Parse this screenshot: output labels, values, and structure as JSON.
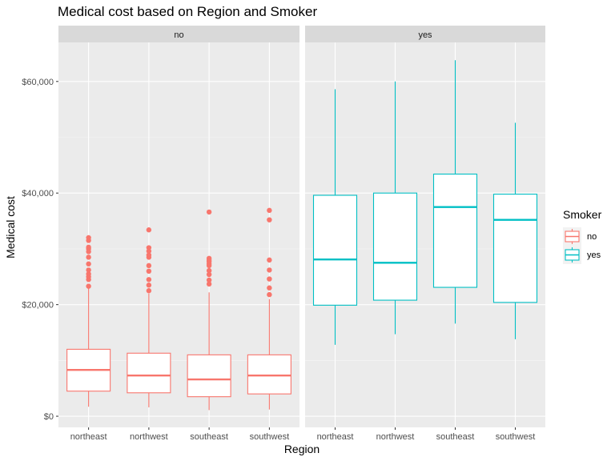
{
  "chart_data": {
    "type": "box",
    "title": "Medical cost based on Region and Smoker",
    "xlabel": "Region",
    "ylabel": "Medical cost",
    "categories": [
      "northeast",
      "northwest",
      "southeast",
      "southwest"
    ],
    "ylim": [
      -2000,
      67000
    ],
    "yticks": [
      0,
      20000,
      40000,
      60000
    ],
    "ytick_labels": [
      "$0",
      "$20,000",
      "$40,000",
      "$60,000"
    ],
    "grid": true,
    "legend": {
      "title": "Smoker",
      "position": "right",
      "items": [
        {
          "label": "no",
          "color": "#F8766D"
        },
        {
          "label": "yes",
          "color": "#00BFC4"
        }
      ]
    },
    "facets": [
      {
        "label": "no",
        "color": "#F8766D",
        "boxes": [
          {
            "category": "northeast",
            "lower_whisker": 1700,
            "q1": 4500,
            "median": 8300,
            "q3": 12000,
            "upper_whisker": 23000,
            "outliers": [
              23300,
              24500,
              25000,
              25500,
              26200,
              27300,
              28500,
              29500,
              30000,
              30300,
              31500,
              32000
            ]
          },
          {
            "category": "northwest",
            "lower_whisker": 1600,
            "q1": 4200,
            "median": 7300,
            "q3": 11300,
            "upper_whisker": 22000,
            "outliers": [
              22500,
              23500,
              24500,
              26000,
              27000,
              28500,
              28900,
              29600,
              30200,
              33400
            ]
          },
          {
            "category": "southeast",
            "lower_whisker": 1100,
            "q1": 3500,
            "median": 6600,
            "q3": 11000,
            "upper_whisker": 22200,
            "outliers": [
              23700,
              24400,
              25400,
              26100,
              27000,
              27300,
              27700,
              28000,
              28300,
              36600
            ]
          },
          {
            "category": "southwest",
            "lower_whisker": 1200,
            "q1": 4000,
            "median": 7300,
            "q3": 11000,
            "upper_whisker": 21000,
            "outliers": [
              21800,
              23000,
              24600,
              26200,
              28000,
              35200,
              36900
            ]
          }
        ]
      },
      {
        "label": "yes",
        "color": "#00BFC4",
        "boxes": [
          {
            "category": "northeast",
            "lower_whisker": 12800,
            "q1": 19900,
            "median": 28100,
            "q3": 39600,
            "upper_whisker": 58600,
            "outliers": []
          },
          {
            "category": "northwest",
            "lower_whisker": 14700,
            "q1": 20800,
            "median": 27500,
            "q3": 40000,
            "upper_whisker": 60000,
            "outliers": []
          },
          {
            "category": "southeast",
            "lower_whisker": 16600,
            "q1": 23100,
            "median": 37500,
            "q3": 43400,
            "upper_whisker": 63800,
            "outliers": []
          },
          {
            "category": "southwest",
            "lower_whisker": 13800,
            "q1": 20400,
            "median": 35200,
            "q3": 39800,
            "upper_whisker": 52600,
            "outliers": []
          }
        ]
      }
    ]
  }
}
